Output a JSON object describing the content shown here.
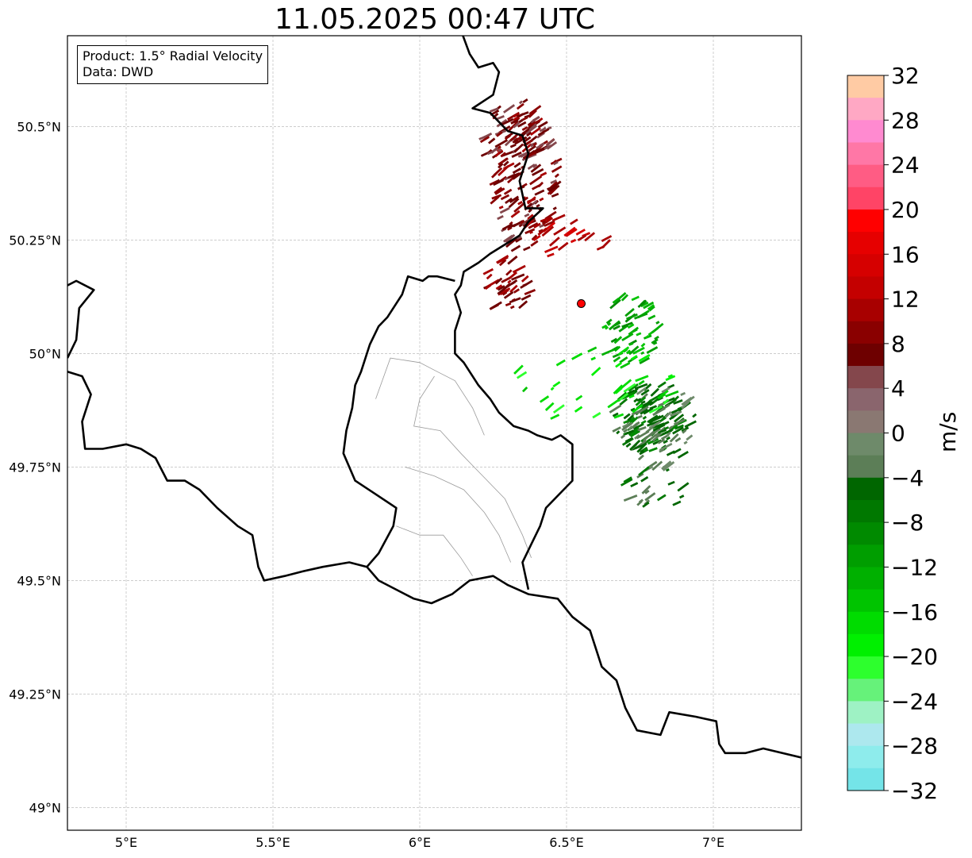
{
  "title": "11.05.2025 00:47 UTC",
  "info": {
    "product": "Product: 1.5° Radial Velocity",
    "data": "Data: DWD"
  },
  "axes": {
    "lon_ticks": [
      {
        "value": 5.0,
        "label": "5°E"
      },
      {
        "value": 5.5,
        "label": "5.5°E"
      },
      {
        "value": 6.0,
        "label": "6°E"
      },
      {
        "value": 6.5,
        "label": "6.5°E"
      },
      {
        "value": 7.0,
        "label": "7°E"
      }
    ],
    "lat_ticks": [
      {
        "value": 50.5,
        "label": "50.5°N"
      },
      {
        "value": 50.25,
        "label": "50.25°N"
      },
      {
        "value": 50.0,
        "label": "50°N"
      },
      {
        "value": 49.75,
        "label": "49.75°N"
      },
      {
        "value": 49.5,
        "label": "49.5°N"
      },
      {
        "value": 49.25,
        "label": "49.25°N"
      },
      {
        "value": 49.0,
        "label": "49°N"
      }
    ],
    "lon_range": [
      4.8,
      7.3
    ],
    "lat_range": [
      48.95,
      50.7
    ],
    "grid": true
  },
  "colorbar": {
    "unit": "m/s",
    "range": [
      -32,
      32
    ],
    "ticks": [
      {
        "value": 32,
        "label": "32"
      },
      {
        "value": 28,
        "label": "28"
      },
      {
        "value": 24,
        "label": "24"
      },
      {
        "value": 20,
        "label": "20"
      },
      {
        "value": 16,
        "label": "16"
      },
      {
        "value": 12,
        "label": "12"
      },
      {
        "value": 8,
        "label": "8"
      },
      {
        "value": 4,
        "label": "4"
      },
      {
        "value": 0,
        "label": "0"
      },
      {
        "value": -4,
        "label": "−4"
      },
      {
        "value": -8,
        "label": "−8"
      },
      {
        "value": -12,
        "label": "−12"
      },
      {
        "value": -16,
        "label": "−16"
      },
      {
        "value": -20,
        "label": "−20"
      },
      {
        "value": -24,
        "label": "−24"
      },
      {
        "value": -28,
        "label": "−28"
      },
      {
        "value": -32,
        "label": "−32"
      }
    ],
    "bins": [
      {
        "lo": 30,
        "hi": 32,
        "color": "#ffcba4"
      },
      {
        "lo": 28,
        "hi": 30,
        "color": "#ffa8c4"
      },
      {
        "lo": 26,
        "hi": 28,
        "color": "#ff8ad0"
      },
      {
        "lo": 24,
        "hi": 26,
        "color": "#ff77a6"
      },
      {
        "lo": 22,
        "hi": 24,
        "color": "#ff5c84"
      },
      {
        "lo": 20,
        "hi": 22,
        "color": "#ff4466"
      },
      {
        "lo": 18,
        "hi": 20,
        "color": "#ff0000"
      },
      {
        "lo": 16,
        "hi": 18,
        "color": "#e60000"
      },
      {
        "lo": 14,
        "hi": 16,
        "color": "#d60000"
      },
      {
        "lo": 12,
        "hi": 14,
        "color": "#c40000"
      },
      {
        "lo": 10,
        "hi": 12,
        "color": "#a80000"
      },
      {
        "lo": 8,
        "hi": 10,
        "color": "#8a0000"
      },
      {
        "lo": 6,
        "hi": 8,
        "color": "#6e0000"
      },
      {
        "lo": 4,
        "hi": 6,
        "color": "#84474c"
      },
      {
        "lo": 2,
        "hi": 4,
        "color": "#8a656d"
      },
      {
        "lo": 0,
        "hi": 2,
        "color": "#8a7872"
      },
      {
        "lo": -2,
        "hi": 0,
        "color": "#6e8a6a"
      },
      {
        "lo": -4,
        "hi": -2,
        "color": "#5c7e57"
      },
      {
        "lo": -6,
        "hi": -4,
        "color": "#006600"
      },
      {
        "lo": -8,
        "hi": -6,
        "color": "#007800"
      },
      {
        "lo": -10,
        "hi": -8,
        "color": "#008a00"
      },
      {
        "lo": -12,
        "hi": -10,
        "color": "#009e00"
      },
      {
        "lo": -14,
        "hi": -12,
        "color": "#00b000"
      },
      {
        "lo": -16,
        "hi": -14,
        "color": "#00c400"
      },
      {
        "lo": -18,
        "hi": -16,
        "color": "#00dc00"
      },
      {
        "lo": -20,
        "hi": -18,
        "color": "#00f000"
      },
      {
        "lo": -22,
        "hi": -20,
        "color": "#2dff2d"
      },
      {
        "lo": -24,
        "hi": -22,
        "color": "#66f27a"
      },
      {
        "lo": -26,
        "hi": -24,
        "color": "#9ef2c4"
      },
      {
        "lo": -28,
        "hi": -26,
        "color": "#ade8ee"
      },
      {
        "lo": -30,
        "hi": -28,
        "color": "#8eecec"
      },
      {
        "lo": -32,
        "hi": -30,
        "color": "#74e4e8"
      }
    ]
  },
  "radar_site": {
    "lon": 6.55,
    "lat": 50.11,
    "color": "#ff0000"
  },
  "borders": {
    "national": [
      [
        [
          6.13,
          50.73
        ],
        [
          6.17,
          50.66
        ],
        [
          6.2,
          50.63
        ],
        [
          6.25,
          50.64
        ],
        [
          6.27,
          50.62
        ],
        [
          6.25,
          50.57
        ],
        [
          6.18,
          50.54
        ],
        [
          6.24,
          50.53
        ],
        [
          6.3,
          50.49
        ],
        [
          6.35,
          50.48
        ],
        [
          6.37,
          50.44
        ],
        [
          6.34,
          50.38
        ],
        [
          6.36,
          50.32
        ],
        [
          6.42,
          50.32
        ],
        [
          6.37,
          50.29
        ],
        [
          6.34,
          50.26
        ],
        [
          6.29,
          50.24
        ],
        [
          6.24,
          50.22
        ],
        [
          6.2,
          50.2
        ],
        [
          6.15,
          50.18
        ],
        [
          6.14,
          50.15
        ],
        [
          6.12,
          50.13
        ],
        [
          6.14,
          50.09
        ],
        [
          6.12,
          50.05
        ],
        [
          6.12,
          50.0
        ],
        [
          6.15,
          49.98
        ],
        [
          6.2,
          49.93
        ],
        [
          6.24,
          49.9
        ],
        [
          6.27,
          49.87
        ],
        [
          6.32,
          49.84
        ],
        [
          6.37,
          49.83
        ],
        [
          6.4,
          49.82
        ],
        [
          6.45,
          49.81
        ],
        [
          6.48,
          49.82
        ],
        [
          6.52,
          49.8
        ],
        [
          6.52,
          49.77
        ],
        [
          6.52,
          49.72
        ],
        [
          6.49,
          49.7
        ],
        [
          6.43,
          49.66
        ],
        [
          6.41,
          49.62
        ],
        [
          6.38,
          49.58
        ],
        [
          6.35,
          49.54
        ],
        [
          6.37,
          49.48
        ]
      ],
      [
        [
          6.12,
          50.16
        ],
        [
          6.06,
          50.17
        ],
        [
          6.03,
          50.17
        ],
        [
          6.01,
          50.16
        ],
        [
          5.96,
          50.17
        ],
        [
          5.94,
          50.13
        ],
        [
          5.89,
          50.08
        ],
        [
          5.86,
          50.06
        ],
        [
          5.83,
          50.02
        ],
        [
          5.8,
          49.96
        ],
        [
          5.78,
          49.93
        ],
        [
          5.77,
          49.88
        ],
        [
          5.75,
          49.83
        ],
        [
          5.74,
          49.78
        ],
        [
          5.78,
          49.72
        ],
        [
          5.85,
          49.69
        ],
        [
          5.92,
          49.66
        ],
        [
          5.91,
          49.62
        ],
        [
          5.86,
          49.56
        ],
        [
          5.82,
          49.53
        ],
        [
          5.86,
          49.5
        ],
        [
          5.98,
          49.46
        ],
        [
          6.04,
          49.45
        ],
        [
          6.11,
          49.47
        ],
        [
          6.17,
          49.5
        ],
        [
          6.25,
          49.51
        ],
        [
          6.3,
          49.49
        ],
        [
          6.37,
          49.47
        ],
        [
          6.47,
          49.46
        ],
        [
          6.52,
          49.42
        ],
        [
          6.58,
          49.39
        ],
        [
          6.6,
          49.35
        ],
        [
          6.62,
          49.31
        ],
        [
          6.67,
          49.28
        ],
        [
          6.7,
          49.22
        ],
        [
          6.74,
          49.17
        ],
        [
          6.82,
          49.16
        ],
        [
          6.85,
          49.21
        ],
        [
          6.94,
          49.2
        ],
        [
          7.01,
          49.19
        ],
        [
          7.02,
          49.14
        ],
        [
          7.04,
          49.12
        ],
        [
          7.11,
          49.12
        ],
        [
          7.17,
          49.13
        ],
        [
          7.3,
          49.11
        ]
      ],
      [
        [
          5.82,
          49.53
        ],
        [
          5.76,
          49.54
        ],
        [
          5.67,
          49.53
        ],
        [
          5.6,
          49.52
        ],
        [
          5.54,
          49.51
        ],
        [
          5.47,
          49.5
        ],
        [
          5.45,
          49.53
        ],
        [
          5.43,
          49.6
        ],
        [
          5.38,
          49.62
        ],
        [
          5.31,
          49.66
        ],
        [
          5.25,
          49.7
        ],
        [
          5.2,
          49.72
        ],
        [
          5.14,
          49.72
        ],
        [
          5.1,
          49.77
        ],
        [
          5.05,
          49.79
        ],
        [
          5.0,
          49.8
        ],
        [
          4.92,
          49.79
        ],
        [
          4.86,
          49.79
        ],
        [
          4.85,
          49.85
        ],
        [
          4.88,
          49.91
        ],
        [
          4.85,
          49.95
        ],
        [
          4.8,
          49.96
        ]
      ],
      [
        [
          4.8,
          49.99
        ],
        [
          4.83,
          50.03
        ],
        [
          4.84,
          50.1
        ],
        [
          4.89,
          50.14
        ],
        [
          4.83,
          50.16
        ],
        [
          4.8,
          50.15
        ]
      ]
    ],
    "districts": [
      [
        [
          5.85,
          49.9
        ],
        [
          5.9,
          49.99
        ],
        [
          6.0,
          49.98
        ],
        [
          6.06,
          49.96
        ],
        [
          6.12,
          49.94
        ],
        [
          6.18,
          49.88
        ],
        [
          6.22,
          49.82
        ]
      ],
      [
        [
          6.05,
          49.95
        ],
        [
          6.0,
          49.9
        ],
        [
          5.98,
          49.84
        ],
        [
          6.07,
          49.83
        ],
        [
          6.14,
          49.78
        ],
        [
          6.2,
          49.74
        ],
        [
          6.29,
          49.68
        ],
        [
          6.35,
          49.6
        ],
        [
          6.38,
          49.55
        ]
      ],
      [
        [
          5.95,
          49.75
        ],
        [
          6.05,
          49.73
        ],
        [
          6.15,
          49.7
        ],
        [
          6.22,
          49.65
        ],
        [
          6.27,
          49.6
        ],
        [
          6.31,
          49.54
        ]
      ],
      [
        [
          5.92,
          49.62
        ],
        [
          6.0,
          49.6
        ],
        [
          6.08,
          49.6
        ],
        [
          6.14,
          49.55
        ],
        [
          6.18,
          49.51
        ]
      ]
    ]
  },
  "echoes": [
    {
      "lon": 6.36,
      "lat": 50.38,
      "rlon": 0.11,
      "rlat": 0.16,
      "n": 140,
      "v": 8
    },
    {
      "lon": 6.33,
      "lat": 50.48,
      "rlon": 0.12,
      "rlat": 0.08,
      "n": 70,
      "v": 7
    },
    {
      "lon": 6.3,
      "lat": 50.15,
      "rlon": 0.08,
      "rlat": 0.06,
      "n": 40,
      "v": 9
    },
    {
      "lon": 6.5,
      "lat": 50.26,
      "rlon": 0.16,
      "rlat": 0.05,
      "n": 25,
      "v": 13
    },
    {
      "lon": 6.72,
      "lat": 50.05,
      "rlon": 0.1,
      "rlat": 0.08,
      "n": 60,
      "v": -12
    },
    {
      "lon": 6.78,
      "lat": 49.86,
      "rlon": 0.12,
      "rlat": 0.08,
      "n": 110,
      "v": -6
    },
    {
      "lon": 6.82,
      "lat": 49.84,
      "rlon": 0.12,
      "rlat": 0.1,
      "n": 60,
      "v": -3
    },
    {
      "lon": 6.8,
      "lat": 49.7,
      "rlon": 0.1,
      "rlat": 0.06,
      "n": 20,
      "v": -5
    },
    {
      "lon": 6.6,
      "lat": 49.93,
      "rlon": 0.3,
      "rlat": 0.08,
      "n": 40,
      "v": -18
    }
  ]
}
